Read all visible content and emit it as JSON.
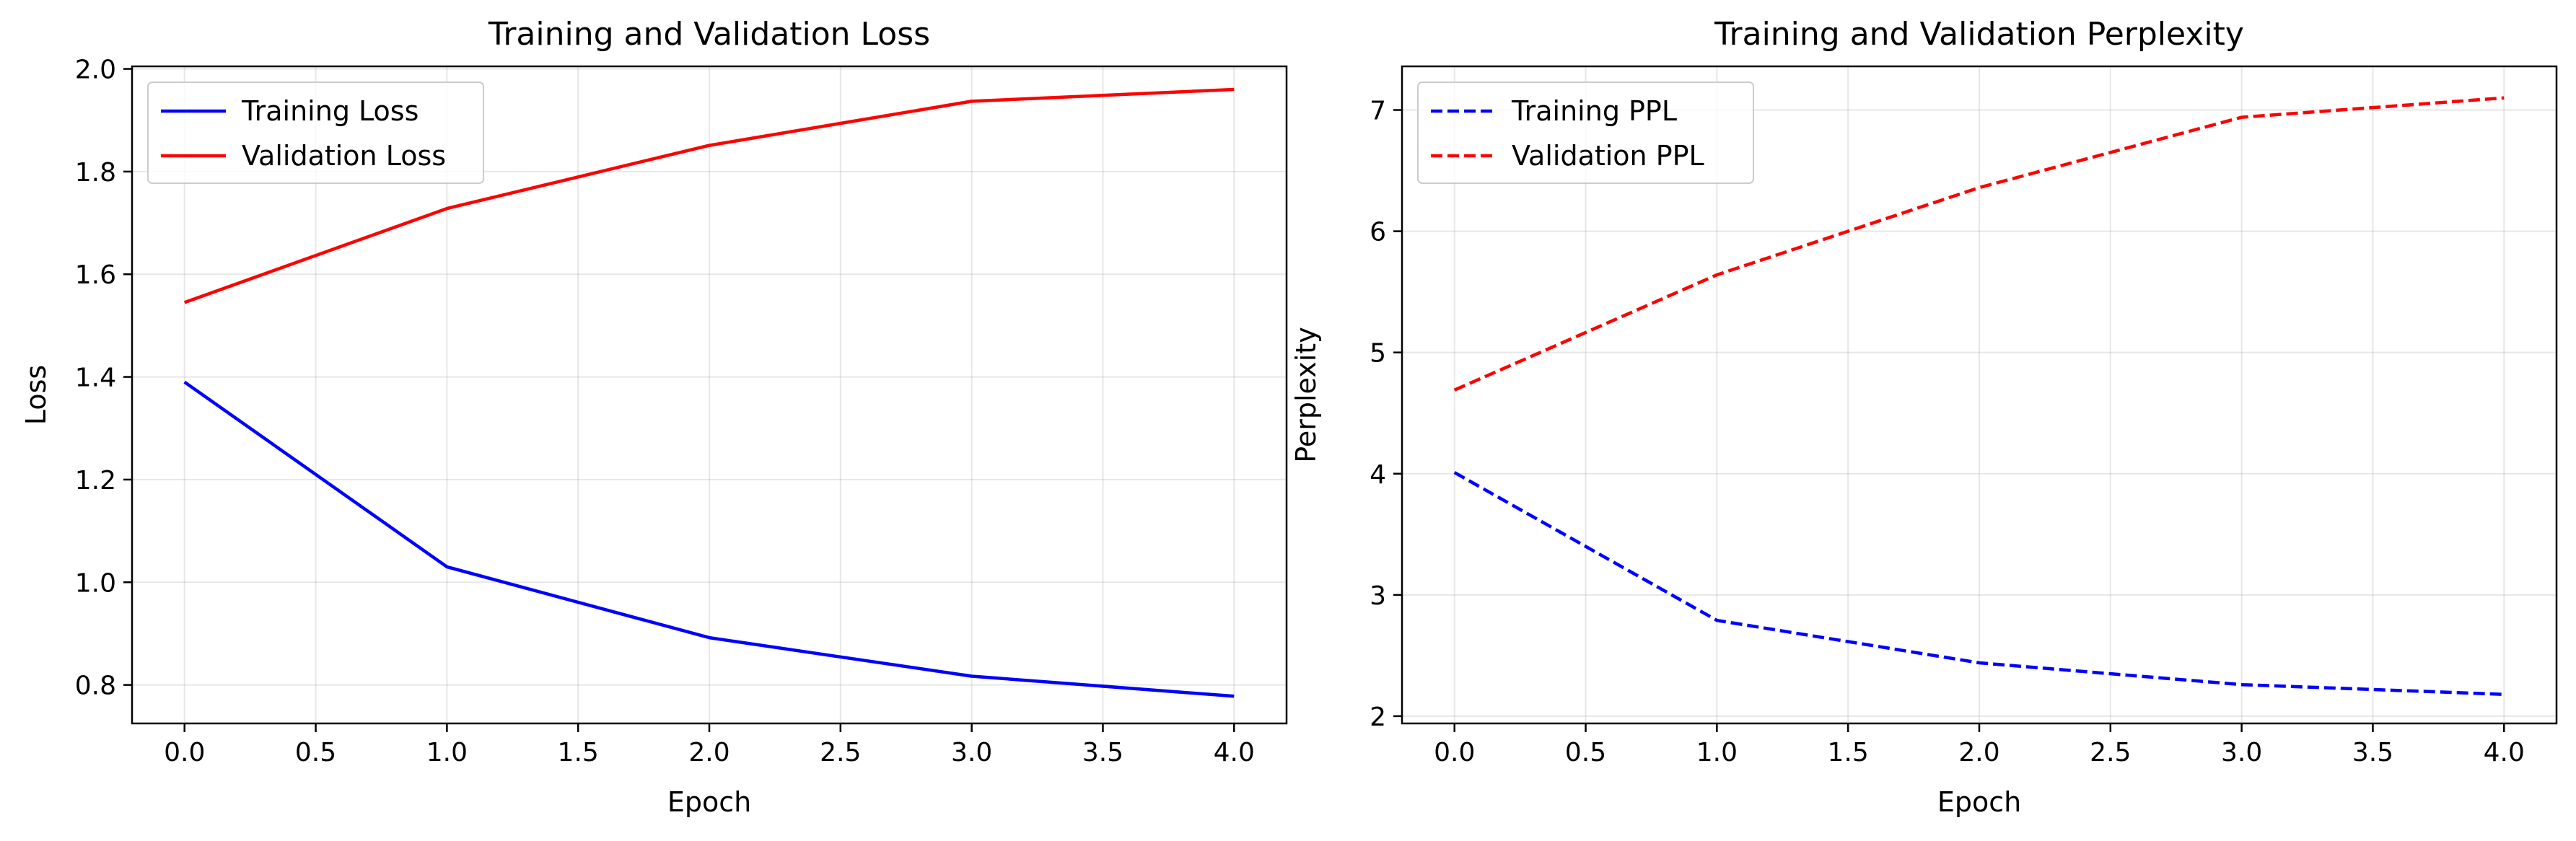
{
  "chart_data": [
    {
      "type": "line",
      "title": "Training and Validation Loss",
      "xlabel": "Epoch",
      "ylabel": "Loss",
      "x": [
        0,
        1,
        2,
        3,
        4
      ],
      "xlim": [
        -0.2,
        4.2
      ],
      "ylim": [
        0.725,
        2.005
      ],
      "xticks": [
        0.0,
        0.5,
        1.0,
        1.5,
        2.0,
        2.5,
        3.0,
        3.5,
        4.0
      ],
      "yticks": [
        0.8,
        1.0,
        1.2,
        1.4,
        1.6,
        1.8,
        2.0
      ],
      "tick_format_decimals": 1,
      "grid": true,
      "legend_position": "top-left",
      "series": [
        {
          "name": "Training Loss",
          "values": [
            1.39,
            1.03,
            0.892,
            0.817,
            0.778
          ],
          "color": "#0000ff",
          "style": "solid"
        },
        {
          "name": "Validation Loss",
          "values": [
            1.545,
            1.728,
            1.851,
            1.937,
            1.96
          ],
          "color": "#ff0000",
          "style": "solid"
        }
      ]
    },
    {
      "type": "line",
      "title": "Training and Validation Perplexity",
      "xlabel": "Epoch",
      "ylabel": "Perplexity",
      "x": [
        0,
        1,
        2,
        3,
        4
      ],
      "xlim": [
        -0.2,
        4.2
      ],
      "ylim": [
        1.94,
        7.36
      ],
      "xticks": [
        0.0,
        0.5,
        1.0,
        1.5,
        2.0,
        2.5,
        3.0,
        3.5,
        4.0
      ],
      "yticks": [
        2,
        3,
        4,
        5,
        6,
        7
      ],
      "tick_format_decimals_x": 1,
      "tick_format_decimals_y": 0,
      "grid": true,
      "legend_position": "top-left",
      "series": [
        {
          "name": "Training PPL",
          "values": [
            4.01,
            2.79,
            2.44,
            2.26,
            2.18
          ],
          "color": "#0000ff",
          "style": "dashed"
        },
        {
          "name": "Validation PPL",
          "values": [
            4.69,
            5.64,
            6.36,
            6.94,
            7.1
          ],
          "color": "#ff0000",
          "style": "dashed"
        }
      ]
    }
  ]
}
